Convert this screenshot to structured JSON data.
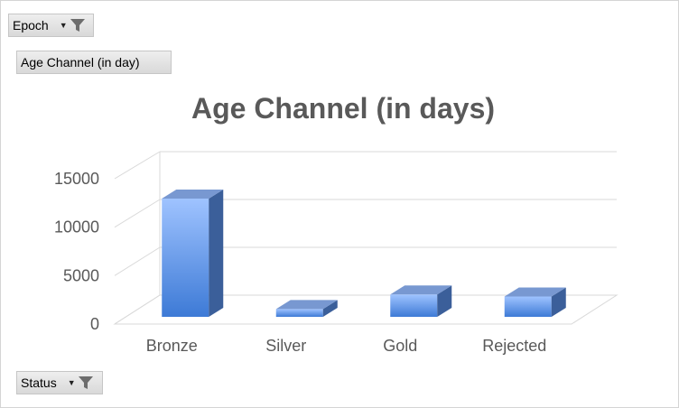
{
  "filters": {
    "epoch_label": "Epoch",
    "value_field_label": "Age Channel (in day)",
    "status_label": "Status"
  },
  "chart_data": {
    "type": "bar",
    "style": "3d-column",
    "title": "Age Channel (in days)",
    "categories": [
      "Bronze",
      "Silver",
      "Gold",
      "Rejected"
    ],
    "values": [
      12200,
      800,
      2300,
      2100
    ],
    "ylim": [
      0,
      15000
    ],
    "yticks": [
      0,
      5000,
      10000,
      15000
    ],
    "grid": true,
    "legend": "none",
    "colors": {
      "bar_light": "#9fc3ff",
      "bar_mid": "#5f96e3",
      "bar_dark": "#3a6fbf",
      "side": "#3b5f9a",
      "top": "#7898d1",
      "grid": "#d9d9d9",
      "text": "#595959"
    }
  }
}
